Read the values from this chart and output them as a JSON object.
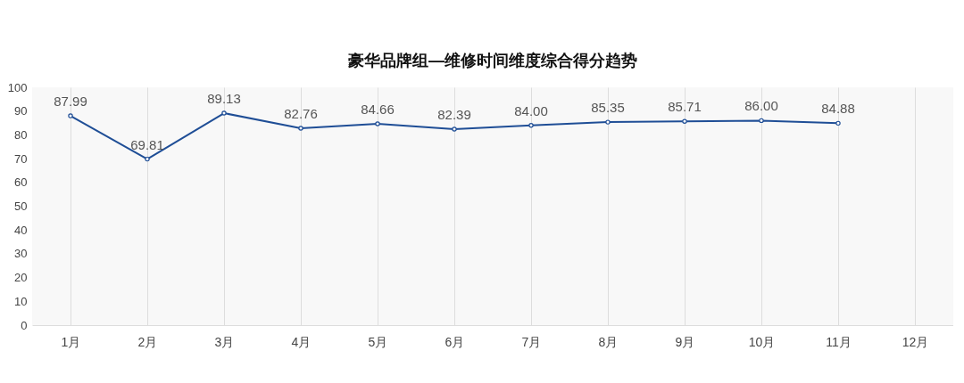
{
  "chart_data": {
    "type": "line",
    "title": "豪华品牌组—维修时间维度综合得分趋势",
    "categories": [
      "1月",
      "2月",
      "3月",
      "4月",
      "5月",
      "6月",
      "7月",
      "8月",
      "9月",
      "10月",
      "11月",
      "12月"
    ],
    "series": [
      {
        "color": "#1f4e96",
        "values": [
          87.99,
          69.81,
          89.13,
          82.76,
          84.66,
          82.39,
          84.0,
          85.35,
          85.71,
          86.0,
          84.88,
          null
        ],
        "value_labels": [
          "87.99",
          "69.81",
          "89.13",
          "82.76",
          "84.66",
          "82.39",
          "84.00",
          "85.35",
          "85.71",
          "86.00",
          "84.88",
          null
        ]
      }
    ],
    "ylim": [
      0,
      100
    ],
    "yticks": [
      0,
      10,
      20,
      30,
      40,
      50,
      60,
      70,
      80,
      90,
      100
    ],
    "grid": "x",
    "marker": "circle"
  }
}
